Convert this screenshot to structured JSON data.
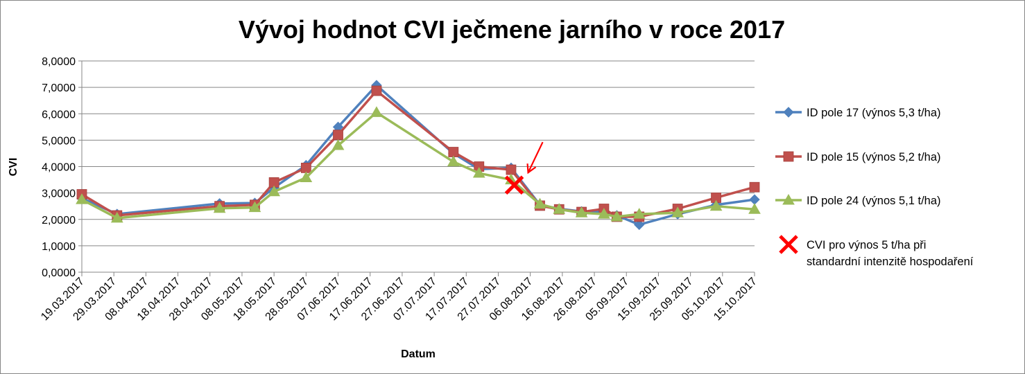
{
  "chart_data": {
    "type": "line",
    "title": "Vývoj hodnot CVI ječmene jarního v roce 2017",
    "xlabel": "Datum",
    "ylabel": "CVI",
    "ylim": [
      0,
      8
    ],
    "yticks": [
      "0,0000",
      "1,0000",
      "2,0000",
      "3,0000",
      "4,0000",
      "5,0000",
      "6,0000",
      "7,0000",
      "8,0000"
    ],
    "xlim": [
      "19.03.2017",
      "15.10.2017"
    ],
    "xticks": [
      "19.03.2017",
      "29.03.2017",
      "08.04.2017",
      "18.04.2017",
      "28.04.2017",
      "08.05.2017",
      "18.05.2017",
      "28.05.2017",
      "07.06.2017",
      "17.06.2017",
      "27.06.2017",
      "07.07.2017",
      "17.07.2017",
      "27.07.2017",
      "06.08.2017",
      "16.08.2017",
      "26.08.2017",
      "05.09.2017",
      "15.09.2017",
      "25.09.2017",
      "05.10.2017",
      "15.10.2017"
    ],
    "grid": true,
    "legend_position": "right",
    "series": [
      {
        "name": "ID pole 17 (výnos 5,3 t/ha)",
        "color": "#4F81BD",
        "marker": "diamond",
        "x": [
          "19.03.2017",
          "30.03.2017",
          "01.05.2017",
          "12.05.2017",
          "18.05.2017",
          "28.05.2017",
          "07.06.2017",
          "19.06.2017",
          "13.07.2017",
          "21.07.2017",
          "31.07.2017",
          "09.08.2017",
          "15.08.2017",
          "22.08.2017",
          "29.08.2017",
          "02.09.2017",
          "09.09.2017",
          "21.09.2017",
          "03.10.2017",
          "15.10.2017"
        ],
        "y": [
          2.8,
          2.2,
          2.6,
          2.62,
          3.2,
          4.05,
          5.5,
          7.08,
          4.5,
          3.9,
          3.95,
          2.55,
          2.4,
          2.3,
          2.3,
          2.15,
          1.8,
          2.2,
          2.55,
          2.75
        ]
      },
      {
        "name": "ID pole 15 (výnos 5,2 t/ha)",
        "color": "#C0504D",
        "marker": "square",
        "x": [
          "19.03.2017",
          "30.03.2017",
          "01.05.2017",
          "12.05.2017",
          "18.05.2017",
          "28.05.2017",
          "07.06.2017",
          "19.06.2017",
          "13.07.2017",
          "21.07.2017",
          "31.07.2017",
          "09.08.2017",
          "15.08.2017",
          "22.08.2017",
          "29.08.2017",
          "02.09.2017",
          "09.09.2017",
          "21.09.2017",
          "03.10.2017",
          "15.10.2017"
        ],
        "y": [
          2.95,
          2.15,
          2.5,
          2.55,
          3.4,
          3.95,
          5.2,
          6.87,
          4.55,
          4.0,
          3.88,
          2.52,
          2.38,
          2.28,
          2.4,
          2.1,
          2.1,
          2.4,
          2.82,
          3.22
        ]
      },
      {
        "name": "ID pole 24 (výnos 5,1 t/ha)",
        "color": "#9BBB59",
        "marker": "triangle",
        "x": [
          "19.03.2017",
          "30.03.2017",
          "01.05.2017",
          "12.05.2017",
          "18.05.2017",
          "28.05.2017",
          "07.06.2017",
          "19.06.2017",
          "13.07.2017",
          "21.07.2017",
          "31.07.2017",
          "09.08.2017",
          "15.08.2017",
          "22.08.2017",
          "29.08.2017",
          "02.09.2017",
          "09.09.2017",
          "21.09.2017",
          "03.10.2017",
          "15.10.2017"
        ],
        "y": [
          2.75,
          2.05,
          2.42,
          2.45,
          3.05,
          3.58,
          4.8,
          6.05,
          4.18,
          3.75,
          3.5,
          2.58,
          2.38,
          2.25,
          2.2,
          2.1,
          2.2,
          2.25,
          2.5,
          2.38
        ]
      },
      {
        "name": "CVI pro výnos 5 t/ha při standardní intenzitě hospodaření",
        "color": "#FF0000",
        "marker": "x",
        "x": [
          "01.08.2017"
        ],
        "y": [
          3.3
        ]
      }
    ],
    "annotations": [
      {
        "type": "arrow",
        "color": "#FF0000"
      }
    ]
  }
}
